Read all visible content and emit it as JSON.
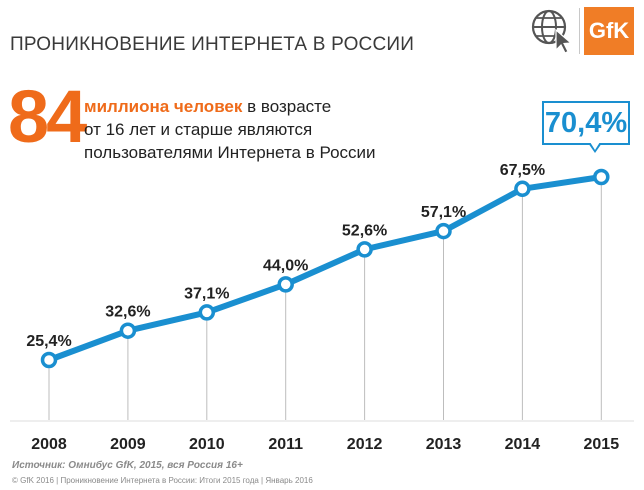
{
  "header": {
    "title": "ПРОНИКНОВЕНИЕ ИНТЕРНЕТА В РОССИИ",
    "logo_text": "GfK",
    "logo_icon": "globe-cursor-icon"
  },
  "headline": {
    "number": "84",
    "highlight": "миллиона человек",
    "line1_rest": " в возрасте",
    "line2": "от 16 лет и старше являются",
    "line3": "пользователями Интернета в России"
  },
  "callout": {
    "value": "70,4%"
  },
  "colors": {
    "line": "#1a8fd0",
    "accent": "#ef6b1a",
    "gfk": "#f07d26"
  },
  "chart_data": {
    "type": "line",
    "categories": [
      "2008",
      "2009",
      "2010",
      "2011",
      "2012",
      "2013",
      "2014",
      "2015"
    ],
    "values": [
      25.4,
      32.6,
      37.1,
      44.0,
      52.6,
      57.1,
      67.5,
      70.4
    ],
    "data_labels": [
      "25,4%",
      "32,6%",
      "37,1%",
      "44,0%",
      "52,6%",
      "57,1%",
      "67,5%",
      ""
    ],
    "ylim": [
      20,
      75
    ],
    "grid": false,
    "drop_lines": true
  },
  "source": "Источник: Омнибус GfK, 2015, вся Россия 16+",
  "footer": "© GfK 2016 | Проникновение Интернета в России: Итоги 2015 года | Январь 2016"
}
